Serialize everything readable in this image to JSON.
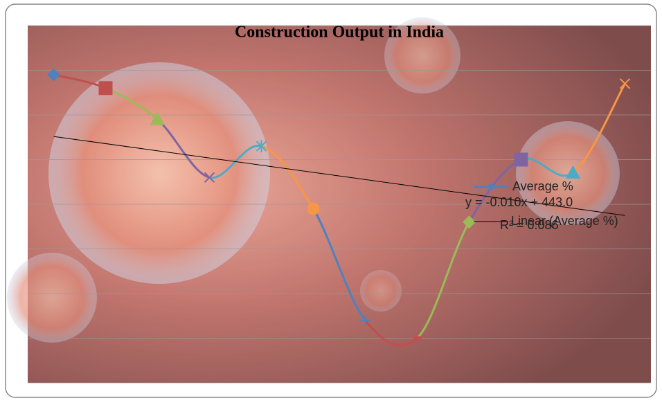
{
  "chart_data": {
    "type": "line",
    "title": "Construction Output in India",
    "categories": [
      null,
      null,
      null,
      null,
      null,
      null,
      null,
      null,
      null,
      null,
      null,
      null
    ],
    "series": [
      {
        "name": "Average %",
        "color": "#4f81bd",
        "point_colors": [
          "#4f81bd",
          "#c0504d",
          "#9bbb59",
          "#8064a2",
          "#4bacc6",
          "#f79646",
          "#4f81bd",
          "#c0504d",
          "#9bbb59",
          "#8064a2",
          "#4bacc6",
          "#f79646"
        ],
        "values": [
          6.9,
          6.6,
          5.9,
          4.6,
          5.3,
          3.9,
          1.4,
          1.0,
          3.6,
          5.0,
          4.7,
          6.7
        ]
      }
    ],
    "trendline": {
      "name": "Linear (Average %)",
      "equation": "y = -0.010x + 443.0",
      "r_squared": "R² = 0.086",
      "color": "#000000"
    },
    "ylim": [
      0,
      8
    ],
    "yticks": [
      0,
      1,
      2,
      3,
      4,
      5,
      6,
      7,
      8
    ],
    "grid": true,
    "smooth": true
  }
}
